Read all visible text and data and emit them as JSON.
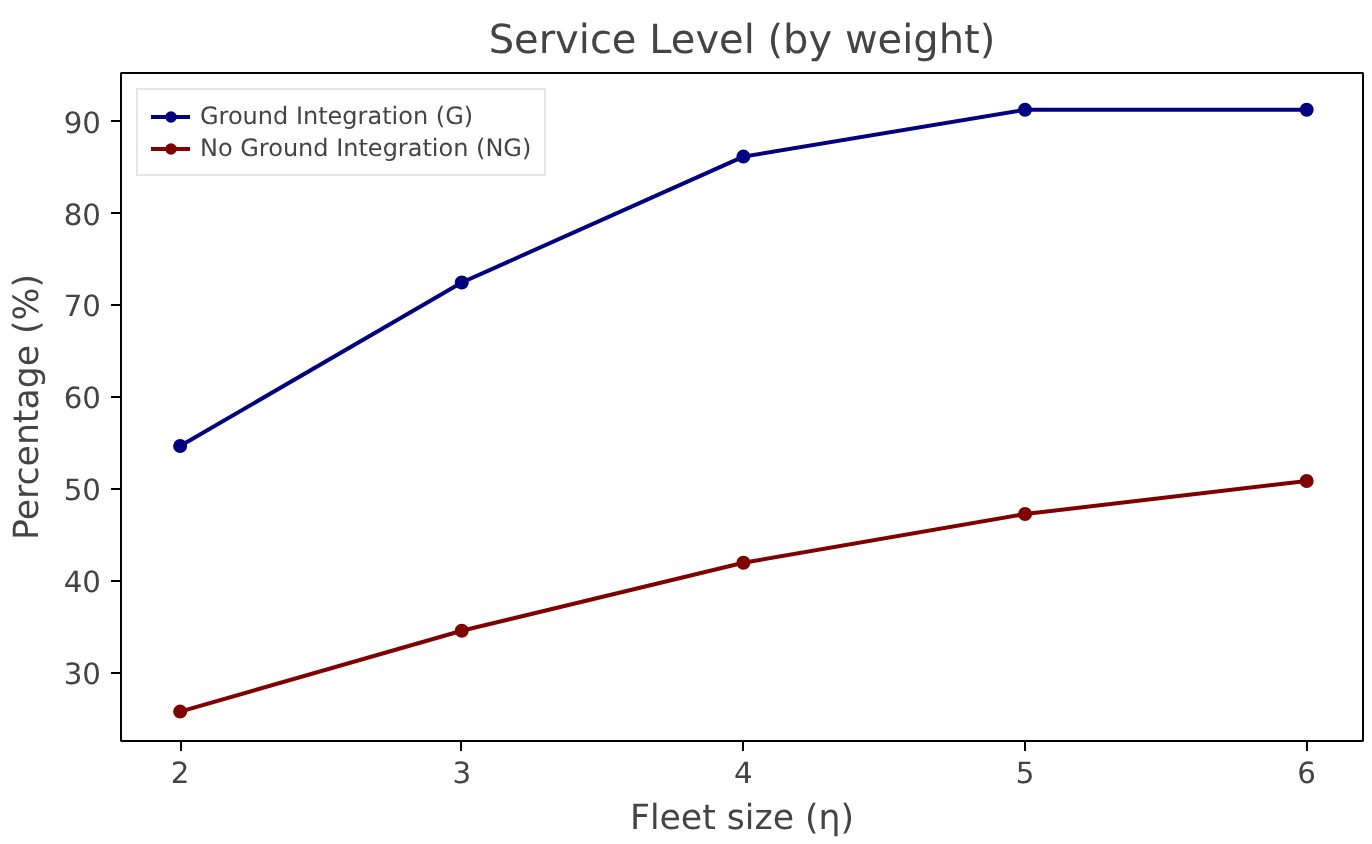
{
  "chart_data": {
    "type": "line",
    "title": "Service Level (by weight)",
    "xlabel": "Fleet size (η)",
    "ylabel": "Percentage (%)",
    "x": [
      2,
      3,
      4,
      5,
      6
    ],
    "series": [
      {
        "name": "Ground Integration (G)",
        "color": "#000080",
        "values": [
          54.7,
          72.5,
          86.2,
          91.3,
          91.3
        ]
      },
      {
        "name": "No Ground Integration (NG)",
        "color": "#800000",
        "values": [
          25.8,
          34.6,
          42.0,
          47.3,
          50.9
        ]
      }
    ],
    "xlim": [
      1.79,
      6.2
    ],
    "ylim": [
      22.6,
      95.3
    ],
    "xticks": [
      2,
      3,
      4,
      5,
      6
    ],
    "yticks": [
      30,
      40,
      50,
      60,
      70,
      80,
      90
    ],
    "grid": false,
    "legend": "top left",
    "marker": "circle",
    "line_style": "solid"
  }
}
